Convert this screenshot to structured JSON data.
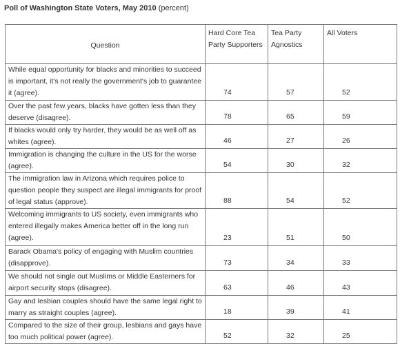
{
  "header": {
    "title": "Poll of Washington State Voters, May 2010",
    "title_note": "(percent)"
  },
  "table": {
    "columns": [
      "Question",
      "Hard Core Tea Party Supporters",
      "Tea Party Agnostics",
      "All Voters"
    ],
    "rows": [
      [
        "While equal opportunity for blacks and minorities to succeed is important, it's not really the government's job to guarantee it (agree).",
        74,
        57,
        52
      ],
      [
        "Over the past few years, blacks have gotten less than they deserve (disagree).",
        78,
        65,
        59
      ],
      [
        "If blacks would only try harder, they would be as well off as whites (agree).",
        46,
        27,
        26
      ],
      [
        "Immigration is changing the culture in the US for the worse (agree).",
        54,
        30,
        32
      ],
      [
        "The immigration law in Arizona which requires police to question people they suspect are illegal immigrants for proof of legal status (approve).",
        88,
        54,
        52
      ],
      [
        "Welcoming immigrants to US society, even immigrants who entered illegally makes America better off in the long run (agree).",
        23,
        51,
        50
      ],
      [
        "Barack Obama's policy of engaging with Muslim countries (disapprove).",
        73,
        34,
        33
      ],
      [
        "We should not single out Muslims or Middle Easterners for airport security stops (disagree).",
        63,
        46,
        43
      ],
      [
        "Gay and lesbian couples should have the same legal right to marry as straight couples (agree).",
        18,
        39,
        41
      ],
      [
        "Compared to the size of their group, lesbians and gays have too much political power (agree).",
        52,
        32,
        25
      ]
    ]
  }
}
